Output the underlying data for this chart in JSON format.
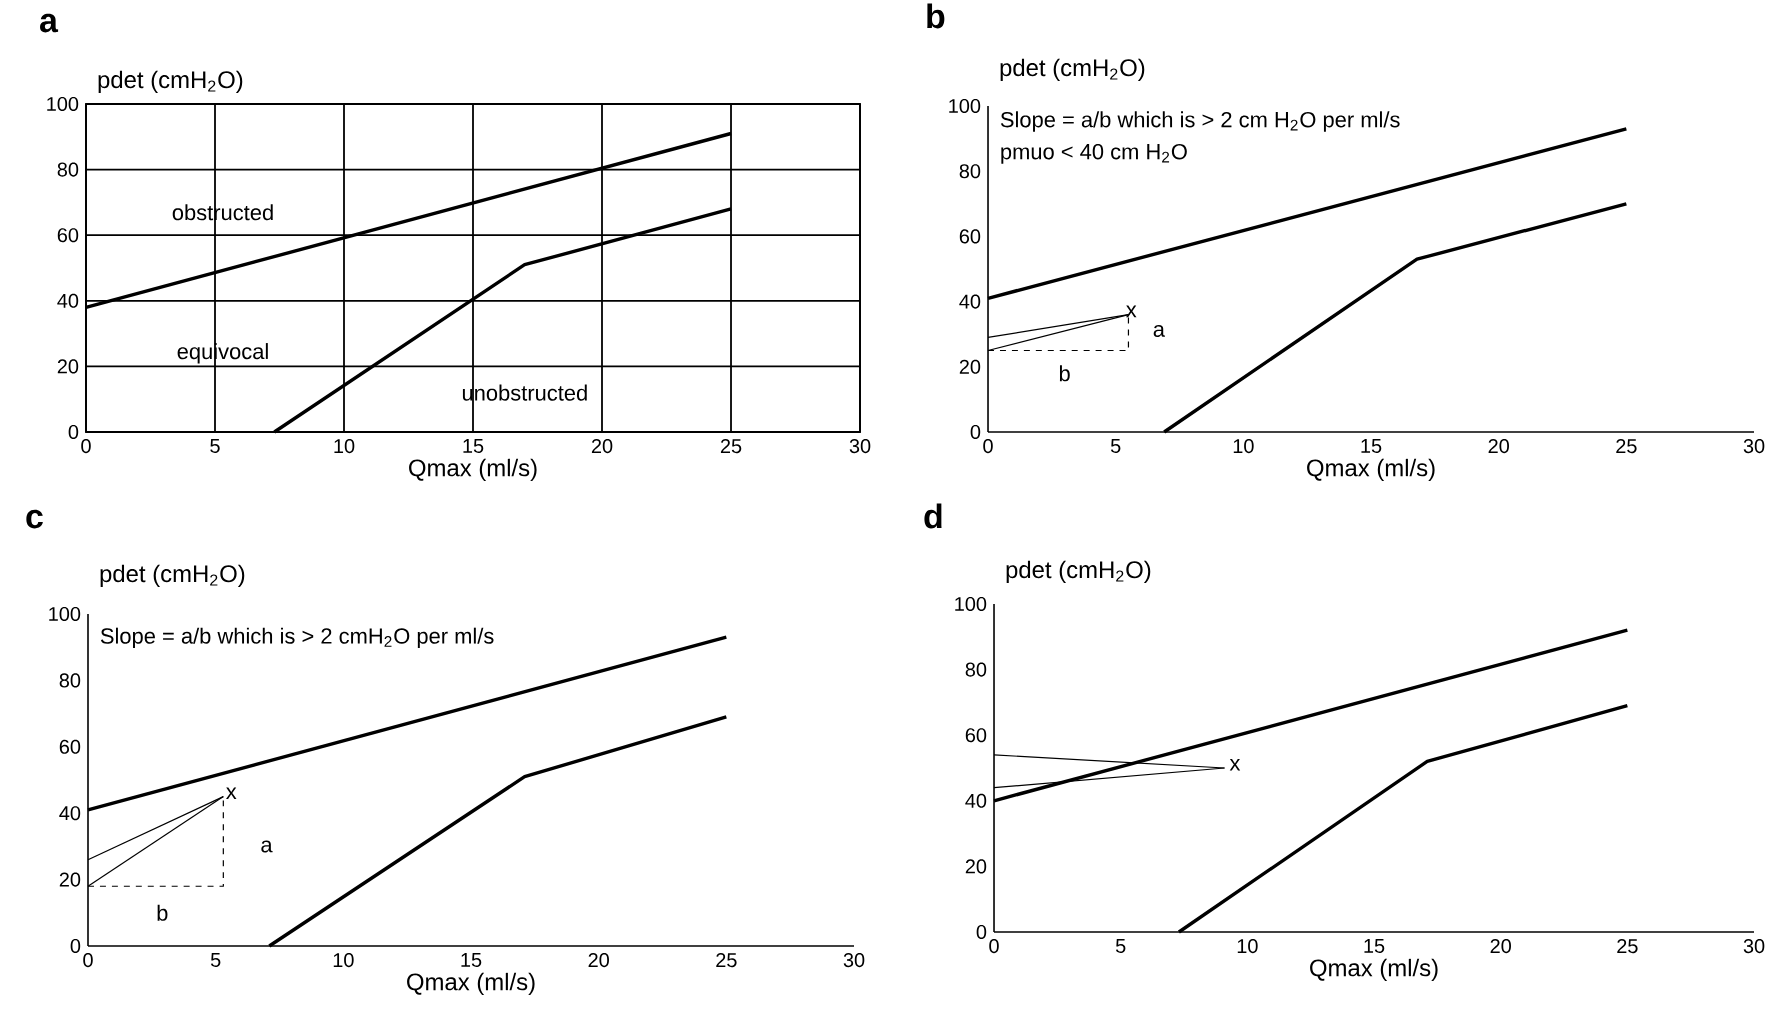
{
  "chart_data": [
    {
      "type": "line",
      "title": "a",
      "xlabel": "Qmax (ml/s)",
      "ylabel": "pdet (cmH$_{2}$O)",
      "xlim": [
        0,
        30
      ],
      "ylim": [
        0,
        100
      ],
      "xticks": [
        0,
        5,
        10,
        15,
        20,
        25,
        30
      ],
      "yticks": [
        0,
        20,
        40,
        60,
        80,
        100
      ],
      "grid": true,
      "series": [
        {
          "color": "#000000",
          "x": [
            0,
            25
          ],
          "values": [
            38,
            91
          ]
        },
        {
          "color": "#000000",
          "x": [
            7.3,
            17,
            25
          ],
          "values": [
            0,
            51,
            68
          ]
        }
      ],
      "annotations": [
        "obstructed",
        "equivocal",
        "unobstructed"
      ]
    },
    {
      "type": "line",
      "title": "b",
      "xlabel": "Qmax (ml/s)",
      "ylabel": "pdet (cmH$_{2}$O)",
      "xlim": [
        0,
        30
      ],
      "ylim": [
        0,
        100
      ],
      "xticks": [
        0,
        5,
        10,
        15,
        20,
        25,
        30
      ],
      "yticks": [
        0,
        20,
        40,
        60,
        80,
        100
      ],
      "series": [
        {
          "color": "#000000",
          "x": [
            0,
            25
          ],
          "values": [
            41,
            93
          ]
        },
        {
          "color": "#000000",
          "x": [
            6.9,
            16.8,
            25
          ],
          "values": [
            0,
            53,
            70
          ]
        },
        {
          "color": "#000000",
          "x": [
            0,
            5.5
          ],
          "values": [
            29,
            36
          ]
        },
        {
          "color": "#000000",
          "x": [
            0,
            5.5
          ],
          "values": [
            25,
            36
          ]
        },
        {
          "color": "#000000",
          "x": [
            0,
            5.5,
            5.5
          ],
          "values": [
            25,
            25,
            36
          ],
          "line_style": "dashed"
        }
      ],
      "annotations": [
        "Slope = a/b which is > 2 cm H$_{2}$O per ml/s",
        "pmuo < 40 cm H$_{2}$O",
        "x",
        "a",
        "b"
      ]
    },
    {
      "type": "line",
      "title": "c",
      "xlabel": "Qmax (ml/s)",
      "ylabel": "pdet (cmH$_{2}$O)",
      "xlim": [
        0,
        30
      ],
      "ylim": [
        0,
        100
      ],
      "xticks": [
        0,
        5,
        10,
        15,
        20,
        25,
        30
      ],
      "yticks": [
        0,
        20,
        40,
        60,
        80,
        100
      ],
      "series": [
        {
          "color": "#000000",
          "x": [
            0,
            25
          ],
          "values": [
            41,
            93
          ]
        },
        {
          "color": "#000000",
          "x": [
            7.1,
            17.1,
            25
          ],
          "values": [
            0,
            51,
            69
          ]
        },
        {
          "color": "#000000",
          "x": [
            0,
            5.3
          ],
          "values": [
            26,
            45
          ]
        },
        {
          "color": "#000000",
          "x": [
            0,
            5.3
          ],
          "values": [
            18,
            45
          ]
        },
        {
          "color": "#000000",
          "x": [
            0,
            5.3,
            5.3
          ],
          "values": [
            18,
            18,
            45
          ],
          "line_style": "dashed"
        }
      ],
      "annotations": [
        "Slope = a/b which is > 2 cmH$_{2}$O per ml/s",
        "x",
        "a",
        "b"
      ]
    },
    {
      "type": "line",
      "title": "d",
      "xlabel": "Qmax (ml/s)",
      "ylabel": "pdet (cmH$_{2}$O)",
      "xlim": [
        0,
        30
      ],
      "ylim": [
        0,
        100
      ],
      "xticks": [
        0,
        5,
        10,
        15,
        20,
        25,
        30
      ],
      "yticks": [
        0,
        20,
        40,
        60,
        80,
        100
      ],
      "series": [
        {
          "color": "#000000",
          "x": [
            0,
            25
          ],
          "values": [
            40,
            92
          ]
        },
        {
          "color": "#000000",
          "x": [
            7.3,
            17.1,
            25
          ],
          "values": [
            0,
            52,
            69
          ]
        },
        {
          "color": "#000000",
          "x": [
            0,
            9.1
          ],
          "values": [
            54,
            50
          ]
        },
        {
          "color": "#000000",
          "x": [
            0,
            9.1
          ],
          "values": [
            44,
            50
          ]
        }
      ],
      "annotations": [
        "x"
      ]
    }
  ]
}
